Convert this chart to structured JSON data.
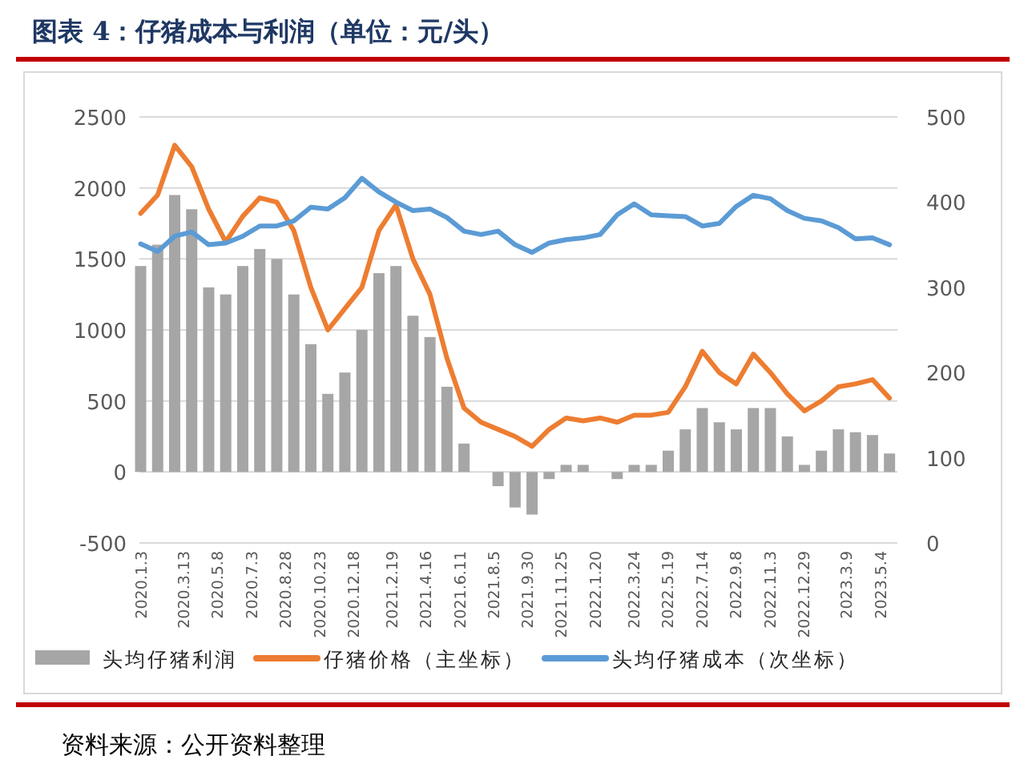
{
  "chart_data": {
    "type": "bar",
    "title": "图表 4：仔猪成本与利润（单位：元/头）",
    "annotations": [
      "资料来源：公开资料整理"
    ],
    "x": [
      "2020-01-03",
      "2020-01-31",
      "2020-02-28",
      "2020-03-27",
      "2020-04-24",
      "2020-05-22",
      "2020-06-19",
      "2020-07-17",
      "2020-08-14",
      "2020-09-11",
      "2020-10-09",
      "2020-11-06",
      "2020-12-04",
      "2021-01-01",
      "2021-01-29",
      "2021-02-26",
      "2021-03-26",
      "2021-04-23",
      "2021-05-21",
      "2021-06-18",
      "2021-07-16",
      "2021-08-13",
      "2021-09-10",
      "2021-10-08",
      "2021-11-05",
      "2021-12-03",
      "2021-12-31",
      "2022-01-28",
      "2022-02-25",
      "2022-03-25",
      "2022-04-22",
      "2022-05-20",
      "2022-06-17",
      "2022-07-15",
      "2022-08-12",
      "2022-09-09",
      "2022-10-07",
      "2022-11-04",
      "2022-12-02",
      "2022-12-30",
      "2023-01-27",
      "2023-02-24",
      "2023-03-24",
      "2023-04-21",
      "2023-05-19"
    ],
    "series": [
      {
        "name": "头均仔猪利润",
        "color": "#a6a6a6",
        "values": [
          1450,
          1600,
          1950,
          1850,
          1300,
          1250,
          1450,
          1570,
          1500,
          1250,
          900,
          550,
          700,
          1000,
          1400,
          1450,
          1100,
          950,
          600,
          200,
          0,
          -100,
          -250,
          -300,
          -50,
          50,
          50,
          0,
          -50,
          50,
          50,
          150,
          300,
          450,
          350,
          300,
          450,
          450,
          250,
          50,
          150,
          300,
          280,
          260,
          130
        ]
      },
      {
        "name": "仔猪价格（主坐标）",
        "type": "line",
        "color": "#ed7d31",
        "values": [
          1820,
          1950,
          2300,
          2150,
          1850,
          1620,
          1800,
          1930,
          1900,
          1700,
          1300,
          1000,
          1150,
          1300,
          1700,
          1880,
          1500,
          1250,
          800,
          450,
          350,
          300,
          250,
          180,
          300,
          380,
          360,
          380,
          350,
          400,
          400,
          420,
          600,
          850,
          700,
          620,
          830,
          700,
          550,
          430,
          500,
          600,
          620,
          650,
          520
        ]
      },
      {
        "name": "头均仔猪成本（次坐标）",
        "type": "line",
        "axis": "y2",
        "color": "#5b9bd5",
        "values": [
          351,
          342,
          360,
          365,
          350,
          352,
          360,
          372,
          372,
          378,
          394,
          392,
          405,
          428,
          412,
          400,
          390,
          392,
          382,
          366,
          362,
          366,
          350,
          341,
          352,
          356,
          358,
          362,
          385,
          398,
          385,
          384,
          383,
          372,
          375,
          395,
          408,
          404,
          390,
          381,
          378,
          370,
          357,
          358,
          350
        ]
      }
    ],
    "xlim": [
      "2020-01-01",
      "2023-06-01"
    ],
    "xticks": [
      {
        "value": "2020-01-03",
        "label": "2020.1.3"
      },
      {
        "value": "2020-03-13",
        "label": "2020.3.13"
      },
      {
        "value": "2020-05-08",
        "label": "2020.5.8"
      },
      {
        "value": "2020-07-03",
        "label": "2020.7.3"
      },
      {
        "value": "2020-08-28",
        "label": "2020.8.28"
      },
      {
        "value": "2020-10-23",
        "label": "2020.10.23"
      },
      {
        "value": "2020-12-18",
        "label": "2020.12.18"
      },
      {
        "value": "2021-02-19",
        "label": "2021.2.19"
      },
      {
        "value": "2021-04-16",
        "label": "2021.4.16"
      },
      {
        "value": "2021-06-11",
        "label": "2021.6.11"
      },
      {
        "value": "2021-08-05",
        "label": "2021.8.5"
      },
      {
        "value": "2021-09-30",
        "label": "2021.9.30"
      },
      {
        "value": "2021-11-25",
        "label": "2021.11.25"
      },
      {
        "value": "2022-01-20",
        "label": "2022.1.20"
      },
      {
        "value": "2022-03-24",
        "label": "2022.3.24"
      },
      {
        "value": "2022-05-19",
        "label": "2022.5.19"
      },
      {
        "value": "2022-07-14",
        "label": "2022.7.14"
      },
      {
        "value": "2022-09-08",
        "label": "2022.9.8"
      },
      {
        "value": "2022-11-03",
        "label": "2022.11.3"
      },
      {
        "value": "2022-12-29",
        "label": "2022.12.29"
      },
      {
        "value": "2023-03-09",
        "label": "2023.3.9"
      },
      {
        "value": "2023-05-04",
        "label": "2023.5.4"
      }
    ],
    "ylim": [
      -500,
      2500
    ],
    "yticks": [
      -500,
      0,
      500,
      1000,
      1500,
      2000,
      2500
    ],
    "y2lim": [
      0,
      500
    ],
    "y2ticks": [
      0,
      100,
      200,
      300,
      400,
      500
    ],
    "grid": "y",
    "legend": "bottom",
    "line_style": "solid",
    "marker": "none"
  }
}
